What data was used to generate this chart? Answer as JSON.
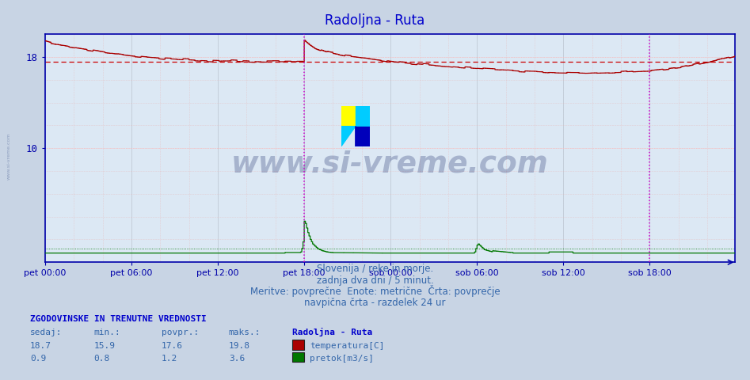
{
  "title": "Radoljna - Ruta",
  "title_color": "#0000cc",
  "bg_color": "#c8d4e4",
  "plot_bg_color": "#dce8f4",
  "grid_color": "#c0ccd8",
  "temp_color": "#aa0000",
  "flow_color": "#007700",
  "avg_temp_color": "#cc0000",
  "avg_flow_color": "#007700",
  "hline_color": "#ffbbbb",
  "vline_color": "#cc00cc",
  "border_color": "#0000aa",
  "watermark_text": "www.si-vreme.com",
  "watermark_color": "#1a2a6a",
  "watermark_alpha": 0.28,
  "subtitle_color": "#3366aa",
  "subtitle1": "Slovenija / reke in morje.",
  "subtitle2": "zadnja dva dni / 5 minut.",
  "subtitle3": "Meritve: povprečne  Enote: metrične  Črta: povprečje",
  "subtitle4": "navpična črta - razdelek 24 ur",
  "stats_header": "ZGODOVINSKE IN TRENUTNE VREDNOSTI",
  "stats_header_color": "#0000cc",
  "stats_color": "#3366aa",
  "legend_title": "Radoljna - Ruta",
  "legend_title_color": "#0000cc",
  "legend_temp": "temperatura[C]",
  "legend_flow": "pretok[m3/s]",
  "stats_labels": [
    "sedaj:",
    "min.:",
    "povpr.:",
    "maks.:"
  ],
  "stats_temp": [
    18.7,
    15.9,
    17.6,
    19.8
  ],
  "stats_flow": [
    0.9,
    0.8,
    1.2,
    3.6
  ],
  "ylim": [
    0,
    20
  ],
  "avg_temp": 17.6,
  "avg_flow": 1.2,
  "n_points": 576,
  "xticklabels": [
    "pet 00:00",
    "pet 06:00",
    "pet 12:00",
    "pet 18:00",
    "sob 00:00",
    "sob 06:00",
    "sob 12:00",
    "sob 18:00"
  ],
  "left_margin": "#5566aa",
  "logo_colors": [
    "#ffff00",
    "#00ccff",
    "#00ccff",
    "#0000aa"
  ]
}
